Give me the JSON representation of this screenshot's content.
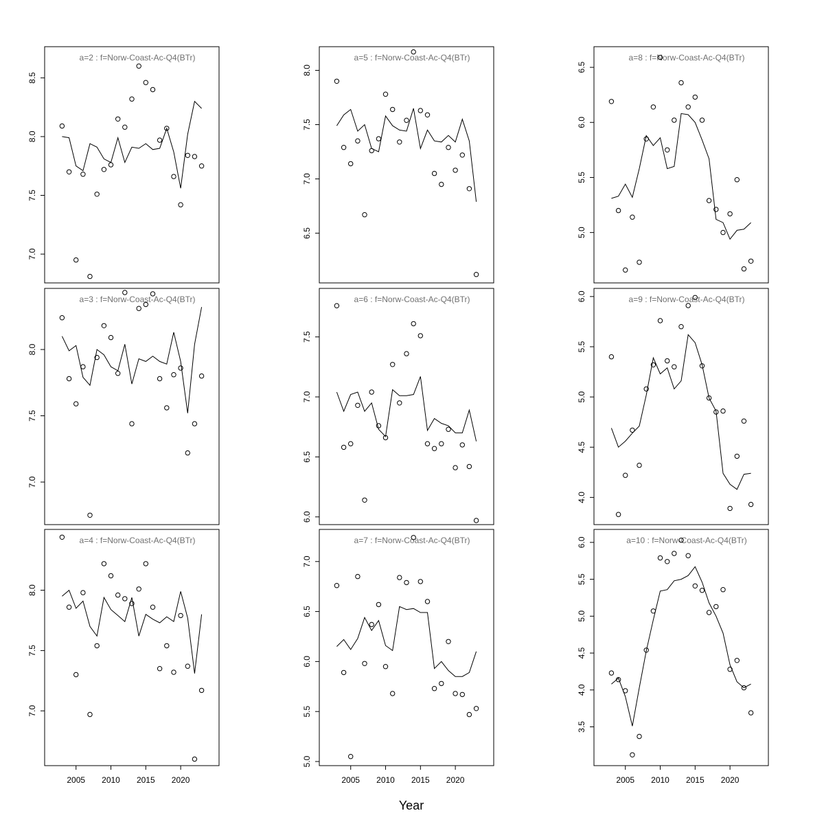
{
  "chart_data": {
    "type": "scatter",
    "xlabel": "Year",
    "x": [
      2003,
      2004,
      2005,
      2006,
      2007,
      2008,
      2009,
      2010,
      2011,
      2012,
      2013,
      2014,
      2015,
      2016,
      2017,
      2018,
      2019,
      2020,
      2021,
      2022,
      2023
    ],
    "xlim": [
      2000.5,
      2025.5
    ],
    "xticks": [
      2005,
      2010,
      2015,
      2020
    ],
    "panels": [
      {
        "title": "a=2  :  f=Norw-Coast-Ac-Q4(BTr)",
        "ylim": [
          6.79,
          8.73
        ],
        "yticks": [
          7.0,
          7.5,
          8.0,
          8.5
        ],
        "observed": [
          8.09,
          7.7,
          6.95,
          7.68,
          6.81,
          7.51,
          7.72,
          7.76,
          8.15,
          8.08,
          8.32,
          8.6,
          8.46,
          8.4,
          7.97,
          8.07,
          7.66,
          7.42,
          7.84,
          7.83,
          7.75
        ],
        "fitted": [
          8.0,
          7.99,
          7.75,
          7.71,
          7.94,
          7.91,
          7.81,
          7.78,
          7.99,
          7.78,
          7.91,
          7.9,
          7.94,
          7.89,
          7.9,
          8.07,
          7.87,
          7.56,
          8.02,
          8.3,
          8.24
        ]
      },
      {
        "title": "a=3  :  f=Norw-Coast-Ac-Q4(BTr)",
        "ylim": [
          6.71,
          8.43
        ],
        "yticks": [
          7.0,
          7.5,
          8.0
        ],
        "observed": [
          8.24,
          7.78,
          7.59,
          7.87,
          6.75,
          7.94,
          8.18,
          8.09,
          7.82,
          8.43,
          7.44,
          8.31,
          8.34,
          8.42,
          7.78,
          7.56,
          7.81,
          7.86,
          7.22,
          7.44,
          7.8
        ],
        "fitted": [
          8.1,
          7.99,
          8.03,
          7.79,
          7.73,
          8.0,
          7.96,
          7.87,
          7.84,
          8.04,
          7.74,
          7.93,
          7.91,
          7.95,
          7.91,
          7.89,
          8.13,
          7.91,
          7.52,
          8.04,
          8.32
        ]
      },
      {
        "title": "a=4  :  f=Norw-Coast-Ac-Q4(BTr)",
        "ylim": [
          6.58,
          8.47
        ],
        "yticks": [
          7.0,
          7.5,
          8.0
        ],
        "observed": [
          8.44,
          7.86,
          7.3,
          7.98,
          6.97,
          7.54,
          8.22,
          8.12,
          7.96,
          7.93,
          7.89,
          8.01,
          8.22,
          7.86,
          7.35,
          7.54,
          7.32,
          7.79,
          7.37,
          6.6,
          7.17
        ],
        "fitted": [
          7.95,
          8.0,
          7.85,
          7.91,
          7.7,
          7.62,
          7.94,
          7.84,
          7.79,
          7.74,
          7.94,
          7.62,
          7.8,
          7.76,
          7.73,
          7.78,
          7.74,
          7.99,
          7.77,
          7.31,
          7.8
        ]
      },
      {
        "title": "a=5  :  f=Norw-Coast-Ac-Q4(BTr)",
        "ylim": [
          6.08,
          8.18
        ],
        "yticks": [
          6.5,
          7.0,
          7.5,
          8.0
        ],
        "observed": [
          7.9,
          7.29,
          7.14,
          7.35,
          6.67,
          7.26,
          7.37,
          7.78,
          7.64,
          7.34,
          7.54,
          8.17,
          7.63,
          7.59,
          7.05,
          6.95,
          7.29,
          7.08,
          7.22,
          6.91,
          6.12
        ],
        "fitted": [
          7.49,
          7.59,
          7.64,
          7.44,
          7.5,
          7.28,
          7.25,
          7.58,
          7.49,
          7.45,
          7.44,
          7.65,
          7.28,
          7.45,
          7.35,
          7.34,
          7.4,
          7.34,
          7.55,
          7.35,
          6.79
        ]
      },
      {
        "title": "a=6  :  f=Norw-Coast-Ac-Q4(BTr)",
        "ylim": [
          5.97,
          7.87
        ],
        "yticks": [
          6.0,
          6.5,
          7.0,
          7.5
        ],
        "observed": [
          7.76,
          6.58,
          6.61,
          6.93,
          6.14,
          7.04,
          6.76,
          6.66,
          7.27,
          6.95,
          7.36,
          7.61,
          7.51,
          6.61,
          6.57,
          6.61,
          6.73,
          6.41,
          6.6,
          6.42,
          5.97
        ],
        "fitted": [
          7.04,
          6.88,
          7.02,
          7.04,
          6.88,
          6.95,
          6.73,
          6.67,
          7.06,
          7.01,
          7.01,
          7.02,
          7.17,
          6.72,
          6.82,
          6.78,
          6.76,
          6.7,
          6.7,
          6.89,
          6.63
        ]
      },
      {
        "title": "a=7  :  f=Norw-Coast-Ac-Q4(BTr)",
        "ylim": [
          5.0,
          7.28
        ],
        "yticks": [
          5.0,
          5.5,
          6.0,
          6.5,
          7.0
        ],
        "observed": [
          6.76,
          5.89,
          5.05,
          6.85,
          5.98,
          6.37,
          6.57,
          5.95,
          5.68,
          6.84,
          6.79,
          7.24,
          6.8,
          6.6,
          5.73,
          5.78,
          6.2,
          5.68,
          5.67,
          5.47,
          5.53
        ],
        "fitted": [
          6.15,
          6.22,
          6.12,
          6.23,
          6.44,
          6.31,
          6.41,
          6.16,
          6.11,
          6.55,
          6.52,
          6.53,
          6.49,
          6.49,
          5.93,
          6.0,
          5.91,
          5.85,
          5.85,
          5.89,
          6.1
        ]
      },
      {
        "title": "a=8  :  f=Norw-Coast-Ac-Q4(BTr)",
        "ylim": [
          4.58,
          6.65
        ],
        "yticks": [
          5.0,
          5.5,
          6.0,
          6.5
        ],
        "observed": [
          6.19,
          5.2,
          4.66,
          5.14,
          4.73,
          5.85,
          6.14,
          6.59,
          5.75,
          6.02,
          6.36,
          6.14,
          6.23,
          6.02,
          5.29,
          5.21,
          5.0,
          5.17,
          5.48,
          4.67,
          4.74
        ],
        "fitted": [
          5.31,
          5.33,
          5.44,
          5.32,
          5.58,
          5.88,
          5.79,
          5.86,
          5.58,
          5.6,
          6.08,
          6.07,
          6.0,
          5.84,
          5.67,
          5.12,
          5.09,
          4.94,
          5.02,
          5.03,
          5.09
        ]
      },
      {
        "title": "a=9  :  f=Norw-Coast-Ac-Q4(BTr)",
        "ylim": [
          3.77,
          6.04
        ],
        "yticks": [
          4.0,
          4.5,
          5.0,
          5.5,
          6.0
        ],
        "observed": [
          5.4,
          3.83,
          4.22,
          4.67,
          4.32,
          5.08,
          5.32,
          5.76,
          5.36,
          5.3,
          5.7,
          5.91,
          5.99,
          5.31,
          4.99,
          4.85,
          4.86,
          3.89,
          4.41,
          4.76,
          3.93
        ],
        "fitted": [
          4.69,
          4.5,
          4.56,
          4.64,
          4.71,
          5.02,
          5.39,
          5.23,
          5.29,
          5.08,
          5.16,
          5.62,
          5.54,
          5.32,
          4.99,
          4.86,
          4.24,
          4.13,
          4.08,
          4.23,
          4.24
        ]
      },
      {
        "title": "a=10  :  f=Norw-Coast-Ac-Q4(BTr)",
        "ylim": [
          3.03,
          6.12
        ],
        "yticks": [
          3.5,
          4.0,
          4.5,
          5.0,
          5.5,
          6.0
        ],
        "observed": [
          4.23,
          4.14,
          3.99,
          3.12,
          3.37,
          4.54,
          5.07,
          5.79,
          5.74,
          5.85,
          6.03,
          5.82,
          5.41,
          5.35,
          5.05,
          5.13,
          5.36,
          4.28,
          4.4,
          4.03,
          3.69
        ],
        "fitted": [
          4.08,
          4.16,
          3.91,
          3.51,
          4.03,
          4.53,
          4.95,
          5.34,
          5.36,
          5.48,
          5.5,
          5.55,
          5.67,
          5.46,
          5.18,
          5.0,
          4.77,
          4.34,
          4.11,
          4.03,
          4.08
        ]
      }
    ]
  }
}
